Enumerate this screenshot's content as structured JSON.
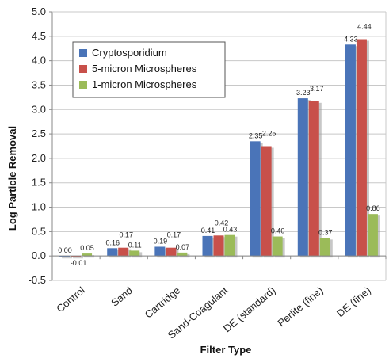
{
  "chart_data": {
    "type": "bar",
    "title": "",
    "xlabel": "Filter Type",
    "ylabel": "Log Particle Removal",
    "ylim": [
      -0.5,
      5.0
    ],
    "yticks": [
      "-0.5",
      "0.0",
      "0.5",
      "1.0",
      "1.5",
      "2.0",
      "2.5",
      "3.0",
      "3.5",
      "4.0",
      "4.5",
      "5.0"
    ],
    "grid": true,
    "legend_position": "top-left",
    "categories": [
      "Control",
      "Sand",
      "Cartridge",
      "Sand-Coagulant",
      "DE (standard)",
      "Perlite (fine)",
      "DE (fine)"
    ],
    "series": [
      {
        "name": "Cryptosporidium",
        "color": "#4a74b8",
        "values": [
          0.0,
          0.16,
          0.19,
          0.41,
          2.35,
          3.23,
          4.33
        ],
        "labels": [
          "0.00",
          "0.16",
          "0.19",
          "0.41",
          "2.35",
          "3.23",
          "4.33"
        ]
      },
      {
        "name": "5-micron Microspheres",
        "color": "#c8504a",
        "values": [
          -0.01,
          0.17,
          0.17,
          0.42,
          2.25,
          3.17,
          4.44
        ],
        "labels": [
          "-0.01",
          "0.17",
          "0.17",
          "0.42",
          "2.25",
          "3.17",
          "4.44"
        ]
      },
      {
        "name": "1-micron Microspheres",
        "color": "#9bbb59",
        "values": [
          0.05,
          0.11,
          0.07,
          0.43,
          0.4,
          0.37,
          0.86
        ],
        "labels": [
          "0.05",
          "0.11",
          "0.07",
          "0.43",
          "0.40",
          "0.37",
          "0.86"
        ]
      }
    ]
  }
}
